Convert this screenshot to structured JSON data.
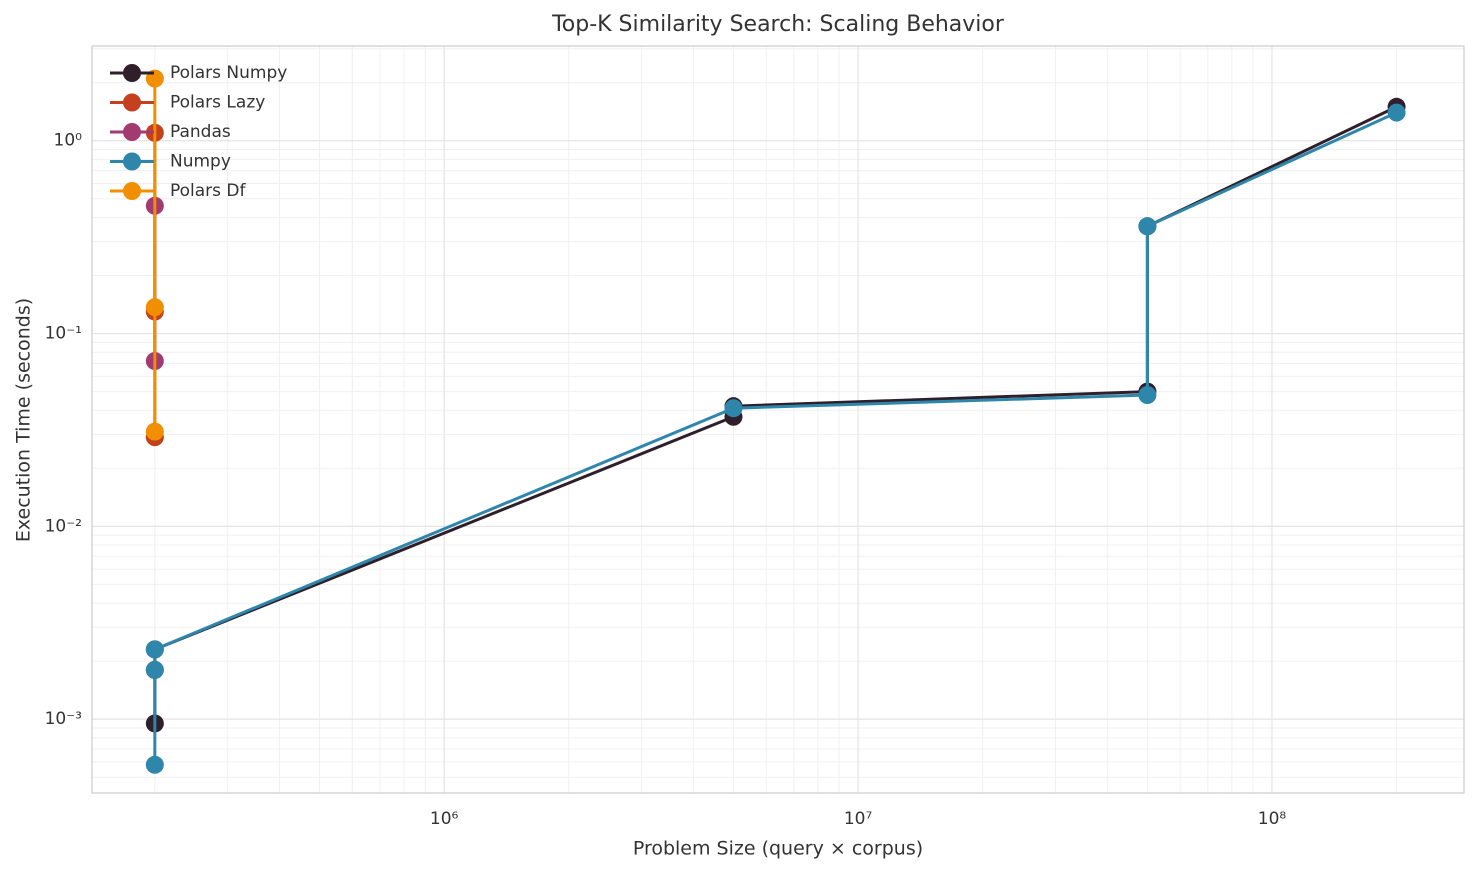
{
  "chart_data": {
    "type": "line",
    "title": "Top-K Similarity Search: Scaling Behavior",
    "x_label": "Problem Size (query × corpus)",
    "y_label": "Execution Time (seconds)",
    "x_scale": "log",
    "y_scale": "log",
    "grid": true,
    "legend": "upper left",
    "xlim": [
      141000,
      291000000
    ],
    "xticks": [
      {
        "value": 1000000,
        "label": "10⁶"
      },
      {
        "value": 10000000,
        "label": "10⁷"
      },
      {
        "value": 100000000,
        "label": "10⁸"
      }
    ],
    "ylim": [
      0.000414,
      3.1
    ],
    "yticks": [
      {
        "value": 0.001,
        "label": "10⁻³"
      },
      {
        "value": 0.01,
        "label": "10⁻²"
      },
      {
        "value": 0.1,
        "label": "10⁻¹"
      },
      {
        "value": 1,
        "label": "10⁰"
      }
    ],
    "series": [
      {
        "name": "Polars Numpy",
        "color": "#2e1f2b",
        "x": [
          200000,
          200000,
          200000,
          5000000,
          5000000,
          50000000,
          50000000,
          200000000
        ],
        "values": [
          0.00095,
          0.0018,
          0.0023,
          0.037,
          0.042,
          0.05,
          0.36,
          1.5
        ]
      },
      {
        "name": "Polars Lazy",
        "color": "#c4401f",
        "x": [
          200000,
          200000,
          200000
        ],
        "values": [
          0.029,
          0.13,
          1.1
        ]
      },
      {
        "name": "Pandas",
        "color": "#a23b72",
        "x": [
          200000,
          200000
        ],
        "values": [
          0.072,
          0.46
        ]
      },
      {
        "name": "Numpy",
        "color": "#2e86ab",
        "x": [
          200000,
          200000,
          200000,
          5000000,
          50000000,
          50000000,
          200000000
        ],
        "values": [
          0.00058,
          0.0018,
          0.0023,
          0.041,
          0.048,
          0.36,
          1.4
        ]
      },
      {
        "name": "Polars Df",
        "color": "#f18f01",
        "x": [
          200000,
          200000,
          200000
        ],
        "values": [
          0.031,
          0.137,
          2.1
        ]
      }
    ]
  }
}
